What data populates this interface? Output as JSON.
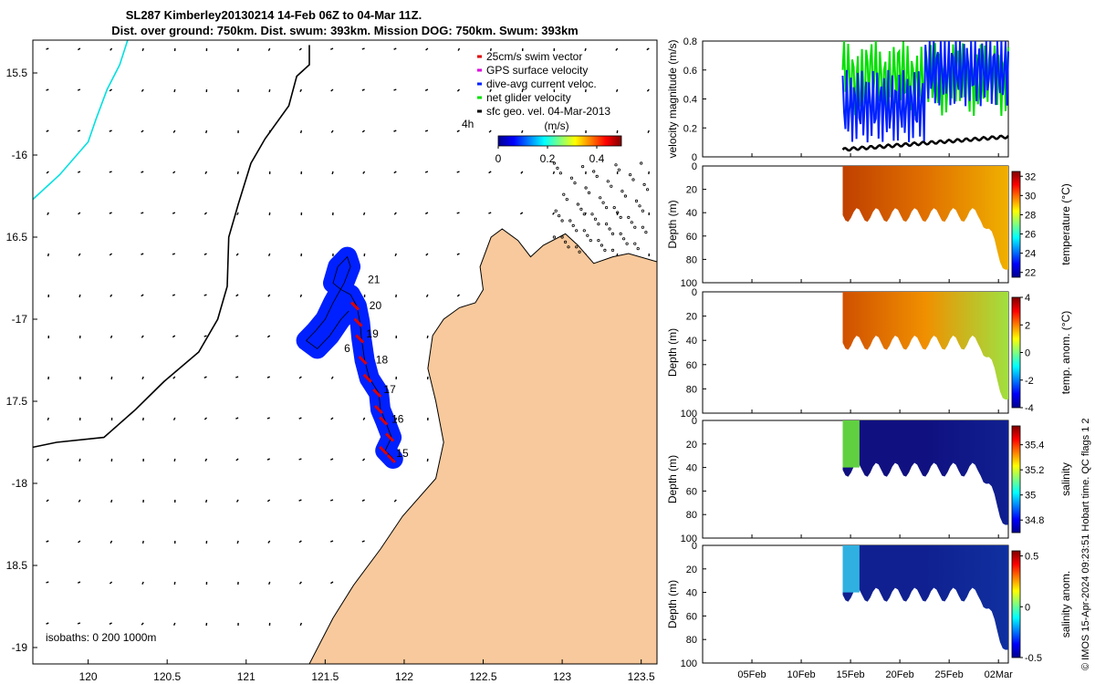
{
  "title": {
    "line1": "SL287 Kimberley20130214 14-Feb 06Z to 04-Mar 11Z.",
    "line2": "Dist. over ground: 750km. Dist. swum: 393km. Mission DOG: 750km. Swum: 393km"
  },
  "colors": {
    "land": "#f8c99c",
    "track": "#0020ff",
    "swim": "#dd0000",
    "net": "#00e000",
    "isobath200": "#00e0e0"
  },
  "map": {
    "xlim": [
      119.65,
      123.6
    ],
    "ylim": [
      -19.1,
      -15.3
    ],
    "xticks": [
      {
        "v": 120,
        "t": "120"
      },
      {
        "v": 120.5,
        "t": "120.5"
      },
      {
        "v": 121,
        "t": "121"
      },
      {
        "v": 121.5,
        "t": "121.5"
      },
      {
        "v": 122,
        "t": "122"
      },
      {
        "v": 122.5,
        "t": "122.5"
      },
      {
        "v": 123,
        "t": "123"
      },
      {
        "v": 123.5,
        "t": "123.5"
      }
    ],
    "yticks": [
      {
        "v": -15.5,
        "t": "15.5"
      },
      {
        "v": -16,
        "t": "-16"
      },
      {
        "v": -16.5,
        "t": "16.5"
      },
      {
        "v": -17,
        "t": "-17"
      },
      {
        "v": -17.5,
        "t": "17.5"
      },
      {
        "v": -18,
        "t": "-18"
      },
      {
        "v": -18.5,
        "t": "18.5"
      },
      {
        "v": -19,
        "t": "-19"
      }
    ],
    "isobaths_label": "isobaths: 0   200  1000m",
    "day_labels": [
      {
        "t": "21",
        "lon": 121.77,
        "lat": -16.78
      },
      {
        "t": "20",
        "lon": 121.78,
        "lat": -16.94
      },
      {
        "t": "19",
        "lon": 121.76,
        "lat": -17.11
      },
      {
        "t": "18",
        "lon": 121.82,
        "lat": -17.27
      },
      {
        "t": "17",
        "lon": 121.87,
        "lat": -17.45
      },
      {
        "t": "16",
        "lon": 121.92,
        "lat": -17.63
      },
      {
        "t": "15",
        "lon": 121.95,
        "lat": -17.84
      },
      {
        "t": "6",
        "lon": 121.62,
        "lat": -17.2
      }
    ],
    "track": [
      [
        121.93,
        -17.85
      ],
      [
        121.88,
        -17.8
      ],
      [
        121.92,
        -17.72
      ],
      [
        121.88,
        -17.62
      ],
      [
        121.85,
        -17.55
      ],
      [
        121.84,
        -17.45
      ],
      [
        121.78,
        -17.36
      ],
      [
        121.75,
        -17.25
      ],
      [
        121.73,
        -17.12
      ],
      [
        121.72,
        -17.02
      ],
      [
        121.7,
        -16.92
      ],
      [
        121.66,
        -16.85
      ],
      [
        121.6,
        -16.82
      ],
      [
        121.55,
        -16.78
      ],
      [
        121.58,
        -16.68
      ],
      [
        121.64,
        -16.62
      ],
      [
        121.66,
        -16.68
      ],
      [
        121.62,
        -16.78
      ],
      [
        121.55,
        -16.9
      ],
      [
        121.5,
        -17.0
      ],
      [
        121.44,
        -17.07
      ],
      [
        121.38,
        -17.13
      ],
      [
        121.45,
        -17.18
      ],
      [
        121.53,
        -17.1
      ],
      [
        121.6,
        -17.0
      ],
      [
        121.65,
        -16.95
      ]
    ],
    "coast": [
      [
        122.55,
        -16.5
      ],
      [
        122.62,
        -16.45
      ],
      [
        122.72,
        -16.52
      ],
      [
        122.8,
        -16.62
      ],
      [
        122.88,
        -16.55
      ],
      [
        123.02,
        -16.48
      ],
      [
        123.1,
        -16.55
      ],
      [
        123.2,
        -16.66
      ],
      [
        123.32,
        -16.62
      ],
      [
        123.42,
        -16.6
      ],
      [
        123.6,
        -16.65
      ],
      [
        123.6,
        -19.1
      ],
      [
        121.4,
        -19.1
      ],
      [
        121.55,
        -18.82
      ],
      [
        121.68,
        -18.62
      ],
      [
        121.85,
        -18.4
      ],
      [
        121.99,
        -18.2
      ],
      [
        122.2,
        -17.97
      ],
      [
        122.25,
        -17.75
      ],
      [
        122.2,
        -17.5
      ],
      [
        122.15,
        -17.3
      ],
      [
        122.18,
        -17.1
      ],
      [
        122.25,
        -17.0
      ],
      [
        122.35,
        -16.93
      ],
      [
        122.45,
        -16.9
      ],
      [
        122.5,
        -16.82
      ],
      [
        122.48,
        -16.68
      ]
    ],
    "isobath1000": [
      [
        121.4,
        -15.33
      ],
      [
        121.4,
        -15.45
      ],
      [
        121.32,
        -15.52
      ],
      [
        121.27,
        -15.7
      ],
      [
        121.12,
        -15.9
      ],
      [
        121.03,
        -16.05
      ],
      [
        120.95,
        -16.3
      ],
      [
        120.89,
        -16.5
      ],
      [
        120.88,
        -16.8
      ],
      [
        120.82,
        -17.0
      ],
      [
        120.7,
        -17.2
      ],
      [
        120.48,
        -17.38
      ],
      [
        120.3,
        -17.55
      ],
      [
        120.1,
        -17.72
      ],
      [
        119.8,
        -17.75
      ],
      [
        119.65,
        -17.78
      ]
    ],
    "isobath200": [
      [
        120.25,
        -15.3
      ],
      [
        120.2,
        -15.45
      ],
      [
        120.12,
        -15.6
      ],
      [
        120.05,
        -15.78
      ],
      [
        120.0,
        -15.92
      ],
      [
        119.82,
        -16.12
      ],
      [
        119.65,
        -16.27
      ]
    ],
    "legend": {
      "items": [
        {
          "label": "25cm/s swim vector",
          "color": "#dd0000"
        },
        {
          "label": "GPS surface velocity",
          "color": "#dd00dd"
        },
        {
          "label": "dive-avg current veloc.",
          "color": "#0020ff"
        },
        {
          "label": "net glider velocity",
          "color": "#00e000"
        },
        {
          "label": "sfc geo. vel. 04-Mar-2013",
          "color": "#000000"
        }
      ],
      "unit": "(m/s)",
      "tag": "4h",
      "ticks": [
        {
          "v": 0,
          "t": "0"
        },
        {
          "v": 0.2,
          "t": "0.2"
        },
        {
          "v": 0.4,
          "t": "0.4"
        }
      ],
      "cmax": 0.5
    }
  },
  "panels": {
    "xlim_day": [
      0,
      31
    ],
    "dates": [
      {
        "d": 5,
        "t": "05Feb"
      },
      {
        "d": 10,
        "t": "10Feb"
      },
      {
        "d": 15,
        "t": "15Feb"
      },
      {
        "d": 20,
        "t": "20Feb"
      },
      {
        "d": 25,
        "t": "25Feb"
      },
      {
        "d": 30,
        "t": "02Mar"
      }
    ],
    "data_start_day": 14.2,
    "data_end_day": 32.4,
    "velocity": {
      "ylabel": "velocity magnitude (m/s)",
      "ylim": [
        0,
        0.8
      ],
      "yticks": [
        {
          "v": 0,
          "t": "0"
        },
        {
          "v": 0.2,
          "t": "0.2"
        },
        {
          "v": 0.4,
          "t": "0.4"
        },
        {
          "v": 0.6,
          "t": "0.6"
        },
        {
          "v": 0.8,
          "t": "0.8"
        }
      ]
    },
    "depth_ylabel": "Depth (m)",
    "depth_ylim": [
      0,
      100
    ],
    "depth_ticks": [
      {
        "v": 0,
        "t": "0"
      },
      {
        "v": 20,
        "t": "20"
      },
      {
        "v": 40,
        "t": "40"
      },
      {
        "v": 60,
        "t": "60"
      },
      {
        "v": 80,
        "t": "80"
      },
      {
        "v": 100,
        "t": "100"
      }
    ],
    "temperature": {
      "label": "temperature (°C)",
      "ticks": [
        {
          "v": 22,
          "t": "22"
        },
        {
          "v": 24,
          "t": "24"
        },
        {
          "v": 26,
          "t": "26"
        },
        {
          "v": 28,
          "t": "28"
        },
        {
          "v": 30,
          "t": "30"
        },
        {
          "v": 32,
          "t": "32"
        }
      ],
      "clim": [
        21.5,
        32.5
      ]
    },
    "temp_anom": {
      "label": "temp. anom. (°C)",
      "ticks": [
        {
          "v": -4,
          "t": "-4"
        },
        {
          "v": -2,
          "t": "-2"
        },
        {
          "v": 0,
          "t": "0"
        },
        {
          "v": 2,
          "t": "2"
        },
        {
          "v": 4,
          "t": "4"
        }
      ],
      "clim": [
        -4,
        4
      ]
    },
    "salinity": {
      "label": "salinity",
      "ticks": [
        {
          "v": 34.8,
          "t": "34.8"
        },
        {
          "v": 35,
          "t": "35"
        },
        {
          "v": 35.2,
          "t": "35.2"
        },
        {
          "v": 35.4,
          "t": "35.4"
        }
      ],
      "clim": [
        34.7,
        35.55
      ]
    },
    "sal_anom": {
      "label": "salinity anom.",
      "ticks": [
        {
          "v": -0.5,
          "t": "-0.5"
        },
        {
          "v": 0,
          "t": "0"
        },
        {
          "v": 0.5,
          "t": "0.5"
        }
      ],
      "clim": [
        -0.5,
        0.55
      ]
    }
  },
  "side_note": "© IMOS 15-Apr-2024 09:23:51 Hobart time. QC flags 1  2"
}
